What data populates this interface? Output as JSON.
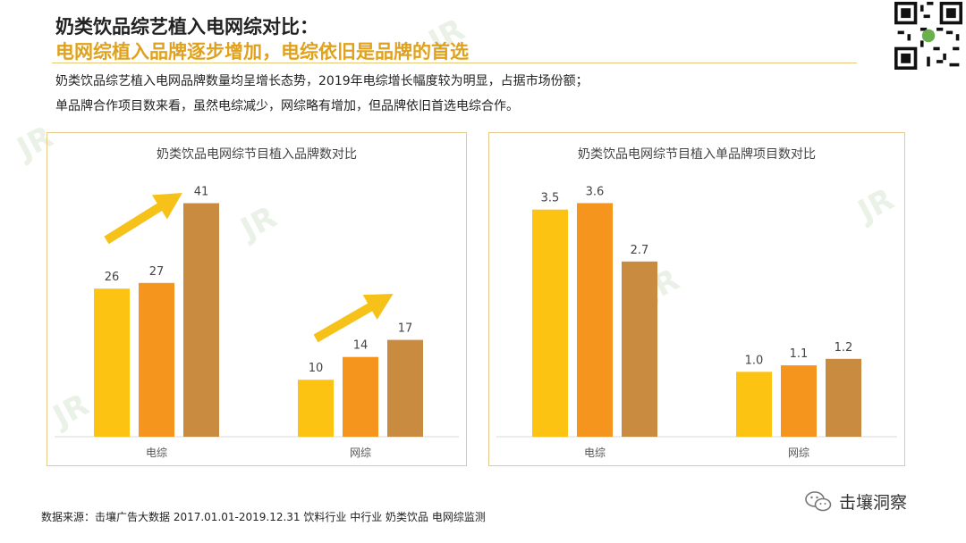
{
  "header": {
    "title": "奶类饮品综艺植入电网综对比：",
    "subtitle": "电网综植入品牌逐步增加，电综依旧是品牌的首选"
  },
  "description": [
    "奶类饮品综艺植入电网品牌数量均呈增长态势，2019年电综增长幅度较为明显，占据市场份额；",
    "单品牌合作项目数来看，虽然电综减少，网综略有增加，但品牌依旧首选电综合作。"
  ],
  "colors": {
    "series": [
      "#fcc313",
      "#f5951e",
      "#c98b40"
    ],
    "accent": "#e0a21c",
    "arrow": "#f6c21a",
    "border": "#e8c98a"
  },
  "chart_data": [
    {
      "type": "bar",
      "title": "奶类饮品电网综节目植入品牌数对比",
      "categories": [
        "电综",
        "网综"
      ],
      "series": [
        {
          "values": [
            26,
            10
          ]
        },
        {
          "values": [
            27,
            14
          ]
        },
        {
          "values": [
            41,
            17
          ]
        }
      ],
      "ylim": [
        0,
        45
      ],
      "value_format": 0,
      "grid": false
    },
    {
      "type": "bar",
      "title": "奶类饮品电网综节目植入单品牌项目数对比",
      "categories": [
        "电综",
        "网综"
      ],
      "series": [
        {
          "values": [
            3.5,
            1.0
          ]
        },
        {
          "values": [
            3.6,
            1.1
          ]
        },
        {
          "values": [
            2.7,
            1.2
          ]
        }
      ],
      "ylim": [
        0,
        3.95
      ],
      "value_format": 1,
      "grid": false
    }
  ],
  "footer": {
    "source": "数据来源：击壤广告大数据 2017.01.01-2019.12.31  饮料行业  中行业  奶类饮品   电网综监测"
  },
  "brand": {
    "wechat_name": "击壤洞察"
  }
}
